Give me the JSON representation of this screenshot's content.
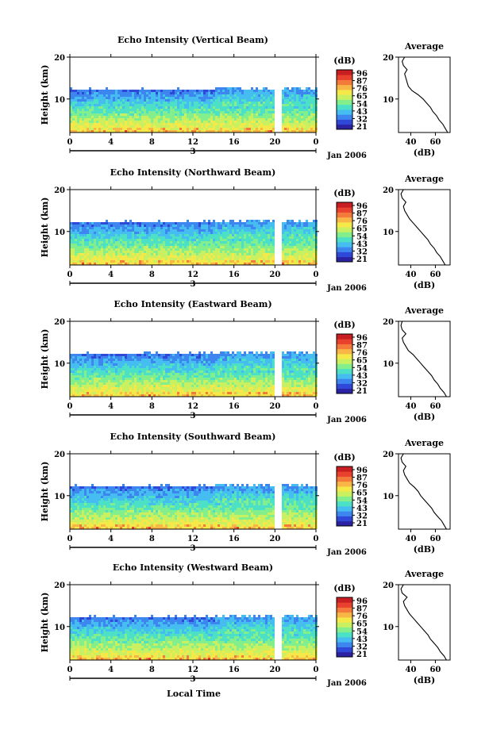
{
  "figure": {
    "xlabel": "Local Time",
    "date_label": "Jan 2006",
    "day_label": "3"
  },
  "colorbar": {
    "unit": "(dB)",
    "ticks": [
      "96",
      "87",
      "76",
      "65",
      "54",
      "43",
      "32",
      "21"
    ],
    "colors": [
      "#2b22a3",
      "#2f48d8",
      "#3d86f0",
      "#46bdf0",
      "#4ce0c6",
      "#82ee8c",
      "#c8f060",
      "#f5e94a",
      "#f8b646",
      "#f47a3c",
      "#e8412e",
      "#c81e22"
    ]
  },
  "chart_data": [
    {
      "type": "heatmap",
      "title": "Echo Intensity (Vertical Beam)",
      "ylabel": "Height (km)",
      "xlabel": "Local Time",
      "x_ticks": [
        "0",
        "4",
        "8",
        "12",
        "16",
        "20",
        "0"
      ],
      "y_ticks": [
        "10",
        "20"
      ],
      "xlim": [
        0,
        24
      ],
      "ylim": [
        2,
        20
      ],
      "colorbar_range_db": [
        21,
        96
      ],
      "data_gap_hours": [
        20,
        20.5
      ],
      "profile": {
        "title": "Average",
        "xlabel": "(dB)",
        "x_ticks": [
          "40",
          "60"
        ],
        "xlim": [
          30,
          72
        ],
        "heights_km": [
          2,
          3,
          4,
          5,
          6,
          7,
          8,
          9,
          10,
          11,
          12,
          13,
          14,
          15,
          16,
          17,
          18,
          19,
          20
        ],
        "db": [
          70,
          68,
          66,
          63,
          61,
          58,
          56,
          53,
          50,
          46,
          41,
          38,
          37,
          36,
          35,
          37,
          34,
          33,
          35
        ]
      }
    },
    {
      "type": "heatmap",
      "title": "Echo Intensity (Northward Beam)",
      "ylabel": "Height (km)",
      "xlabel": "Local Time",
      "x_ticks": [
        "0",
        "4",
        "8",
        "12",
        "16",
        "20",
        "0"
      ],
      "y_ticks": [
        "10",
        "20"
      ],
      "xlim": [
        0,
        24
      ],
      "ylim": [
        2,
        20
      ],
      "colorbar_range_db": [
        21,
        96
      ],
      "data_gap_hours": [
        20,
        20.5
      ],
      "profile": {
        "title": "Average",
        "xlabel": "(dB)",
        "x_ticks": [
          "40",
          "60"
        ],
        "xlim": [
          30,
          72
        ],
        "heights_km": [
          2,
          3,
          4,
          5,
          6,
          7,
          8,
          9,
          10,
          11,
          12,
          13,
          14,
          15,
          16,
          17,
          18,
          19,
          20
        ],
        "db": [
          68,
          66,
          64,
          61,
          59,
          56,
          54,
          51,
          48,
          45,
          42,
          39,
          37,
          35,
          34,
          36,
          33,
          32,
          34
        ]
      }
    },
    {
      "type": "heatmap",
      "title": "Echo Intensity (Eastward Beam)",
      "ylabel": "Height (km)",
      "xlabel": "Local Time",
      "x_ticks": [
        "0",
        "4",
        "8",
        "12",
        "16",
        "20",
        "0"
      ],
      "y_ticks": [
        "10",
        "20"
      ],
      "colorbar_ticks": [
        "96",
        "87",
        "76",
        "65",
        "54",
        "43",
        "32",
        "21"
      ],
      "xlim": [
        0,
        24
      ],
      "ylim": [
        2,
        20
      ],
      "colorbar_range_db": [
        21,
        96
      ],
      "data_gap_hours": [
        20,
        20.5
      ],
      "profile": {
        "title": "Average",
        "xlabel": "(dB)",
        "x_ticks": [
          "40",
          "60"
        ],
        "xlim": [
          30,
          72
        ],
        "heights_km": [
          2,
          3,
          4,
          5,
          6,
          7,
          8,
          9,
          10,
          11,
          12,
          13,
          14,
          15,
          16,
          17,
          18,
          19,
          20
        ],
        "db": [
          69,
          67,
          64,
          62,
          59,
          57,
          54,
          51,
          48,
          45,
          42,
          38,
          36,
          34,
          33,
          36,
          33,
          32,
          33
        ]
      }
    },
    {
      "type": "heatmap",
      "title": "Echo Intensity (Southward Beam)",
      "ylabel": "Height (km)",
      "xlabel": "Local Time",
      "x_ticks": [
        "0",
        "4",
        "8",
        "12",
        "16",
        "20",
        "0"
      ],
      "y_ticks": [
        "10",
        "20"
      ],
      "colorbar_ticks": [
        "96",
        "87",
        "76",
        "65",
        "54",
        "43",
        "32",
        "21"
      ],
      "xlim": [
        0,
        24
      ],
      "ylim": [
        2,
        20
      ],
      "colorbar_range_db": [
        21,
        96
      ],
      "data_gap_hours": [
        20,
        20.5
      ],
      "profile": {
        "title": "Average",
        "xlabel": "(dB)",
        "x_ticks": [
          "40",
          "60"
        ],
        "xlim": [
          30,
          72
        ],
        "heights_km": [
          2,
          3,
          4,
          5,
          6,
          7,
          8,
          9,
          10,
          11,
          12,
          13,
          14,
          15,
          16,
          17,
          18,
          19,
          20
        ],
        "db": [
          69,
          67,
          65,
          62,
          59,
          57,
          54,
          51,
          48,
          46,
          43,
          39,
          37,
          35,
          34,
          36,
          33,
          32,
          34
        ]
      }
    },
    {
      "type": "heatmap",
      "title": "Echo Intensity (Westward Beam)",
      "ylabel": "Height (km)",
      "xlabel": "Local Time",
      "x_ticks": [
        "0",
        "4",
        "8",
        "12",
        "16",
        "20",
        "0"
      ],
      "y_ticks": [
        "10",
        "20"
      ],
      "colorbar_ticks": [
        "96",
        "87",
        "76",
        "65",
        "54",
        "43",
        "32",
        "21"
      ],
      "xlim": [
        0,
        24
      ],
      "ylim": [
        2,
        20
      ],
      "colorbar_range_db": [
        21,
        96
      ],
      "data_gap_hours": [
        20,
        20.5
      ],
      "profile": {
        "title": "Average",
        "xlabel": "(dB)",
        "x_ticks": [
          "40",
          "60"
        ],
        "xlim": [
          30,
          72
        ],
        "heights_km": [
          2,
          3,
          4,
          5,
          6,
          7,
          8,
          9,
          10,
          11,
          12,
          13,
          14,
          15,
          16,
          17,
          18,
          19,
          20
        ],
        "db": [
          69,
          67,
          64,
          62,
          59,
          56,
          54,
          51,
          48,
          45,
          42,
          39,
          37,
          35,
          34,
          37,
          33,
          32,
          34
        ]
      }
    }
  ]
}
